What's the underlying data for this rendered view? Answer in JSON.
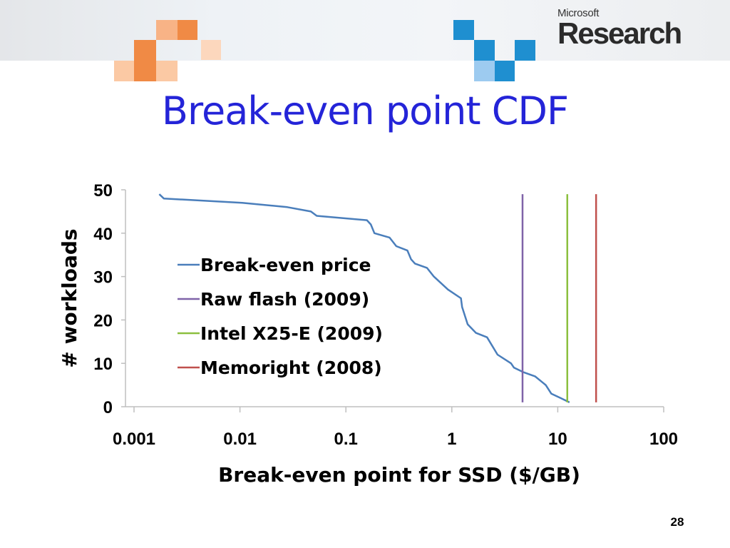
{
  "logo": {
    "line1": "Microsoft",
    "line2": "Research"
  },
  "slide": {
    "title": "Break-even point CDF",
    "page_number": "28"
  },
  "colors": {
    "title": "#2424d8",
    "break_even": "#4a7ebb",
    "raw_flash": "#7f63a8",
    "intel": "#8cbf3f",
    "memoright": "#c0504d"
  },
  "chart_data": {
    "type": "line",
    "title": "",
    "xlabel": "Break-even point for SSD ($/GB)",
    "ylabel": "# workloads",
    "xscale": "log",
    "xlim": [
      0.001,
      100
    ],
    "ylim": [
      0,
      50
    ],
    "xticks": [
      "0.001",
      "0.01",
      "0.1",
      "1",
      "10",
      "100"
    ],
    "yticks": [
      "0",
      "10",
      "20",
      "30",
      "40",
      "50"
    ],
    "grid": false,
    "legend_placement": "center-left",
    "series": [
      {
        "name": "Break-even price",
        "kind": "curve",
        "x": [
          0.00173,
          0.00191,
          0.0105,
          0.028,
          0.0467,
          0.0531,
          0.158,
          0.172,
          0.186,
          0.258,
          0.299,
          0.381,
          0.412,
          0.449,
          0.582,
          0.677,
          0.92,
          1.22,
          1.25,
          1.41,
          1.69,
          2.15,
          2.7,
          3.62,
          3.86,
          4.7,
          6.1,
          7.7,
          8.7,
          10.6,
          12.9
        ],
        "y": [
          49,
          48,
          47,
          46,
          45,
          44,
          43,
          42,
          40,
          39,
          37,
          36,
          34,
          33,
          32,
          30,
          27,
          25,
          23,
          19,
          17,
          16,
          12,
          10,
          9,
          8,
          7,
          5,
          3,
          2,
          1
        ]
      },
      {
        "name": "Raw flash (2009)",
        "kind": "vertical",
        "x": 4.65,
        "y": [
          1,
          49
        ]
      },
      {
        "name": "Intel X25-E (2009)",
        "kind": "vertical",
        "x": 12.3,
        "y": [
          1,
          49
        ]
      },
      {
        "name": "Memoright (2008)",
        "kind": "vertical",
        "x": 23,
        "y": [
          1,
          49
        ]
      }
    ]
  }
}
